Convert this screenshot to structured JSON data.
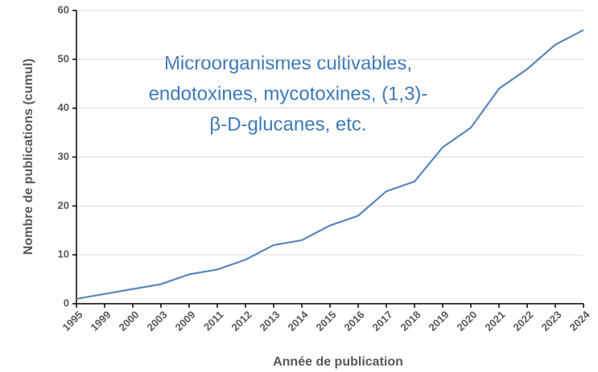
{
  "chart_data": {
    "type": "line",
    "categories": [
      "1995",
      "1999",
      "2000",
      "2003",
      "2009",
      "2011",
      "2012",
      "2013",
      "2014",
      "2015",
      "2016",
      "2017",
      "2018",
      "2019",
      "2020",
      "2021",
      "2022",
      "2023",
      "2024"
    ],
    "series": [
      {
        "name": "Publications",
        "color": "#5a86bd",
        "values": [
          1,
          2,
          3,
          4,
          6,
          7,
          9,
          12,
          13,
          16,
          18,
          23,
          25,
          32,
          36,
          44,
          48,
          53,
          56
        ]
      }
    ],
    "ylim": [
      0,
      60
    ],
    "yticks": [
      0,
      10,
      20,
      30,
      40,
      50,
      60
    ],
    "grid": true,
    "xlabel": "Année de publication",
    "ylabel": "Nombre de publications (cumul)",
    "annotation": [
      "Microorganismes cultivables,",
      "endotoxines, mycotoxines, (1,3)-",
      "β-D-glucanes, etc."
    ]
  }
}
